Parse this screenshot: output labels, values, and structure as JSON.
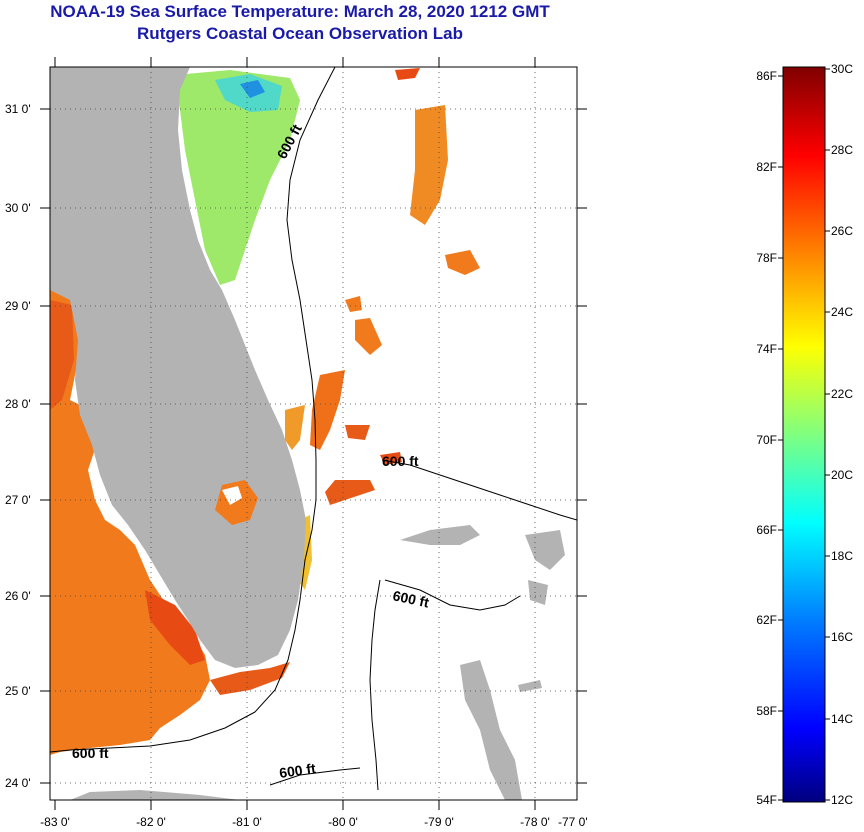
{
  "title": {
    "line1": "NOAA-19 Sea Surface Temperature:  March 28, 2020 1212 GMT",
    "line2": "Rutgers Coastal Ocean Observation Lab"
  },
  "map": {
    "lon_ticks": [
      "-83 0'",
      "-82 0'",
      "-81 0'",
      "-80 0'",
      "-79 0'",
      "-78 0'",
      "-77 0'"
    ],
    "lat_ticks": [
      "31 0'",
      "30 0'",
      "29 0'",
      "28 0'",
      "27 0'",
      "26 0'",
      "25 0'",
      "24 0'"
    ],
    "contour_labels": [
      "600 ft",
      "600 ft",
      "600 ft",
      "600 ft",
      "600 ft"
    ],
    "colors": {
      "land": "#b3b3b3",
      "no_data": "#ffffff",
      "warm_water": "#f07818"
    }
  },
  "colorbar": {
    "f_labels": [
      "86F",
      "82F",
      "78F",
      "74F",
      "70F",
      "66F",
      "62F",
      "58F",
      "54F"
    ],
    "c_labels": [
      "30C",
      "28C",
      "26C",
      "24C",
      "22C",
      "20C",
      "18C",
      "16C",
      "14C",
      "12C"
    ],
    "colors": [
      "#000080",
      "#0000ff",
      "#0080ff",
      "#00ffff",
      "#80ff80",
      "#ffff00",
      "#ff8000",
      "#ff0000",
      "#800000"
    ]
  }
}
